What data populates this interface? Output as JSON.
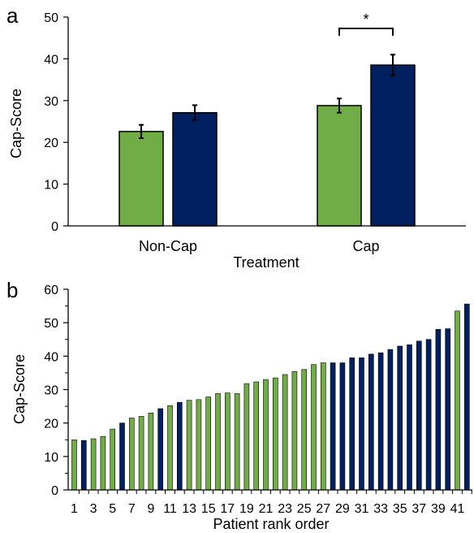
{
  "colors": {
    "green": "#70ad47",
    "navy": "#002060",
    "axis": "#000000"
  },
  "chart_data": [
    {
      "panel_label": "a",
      "type": "bar",
      "xlabel": "Treatment",
      "ylabel": "Cap-Score",
      "categories": [
        "Non-Cap",
        "Cap"
      ],
      "ylim": [
        0,
        50
      ],
      "yticks": [
        0,
        10,
        20,
        30,
        40,
        50
      ],
      "series_colors": [
        "#70ad47",
        "#002060"
      ],
      "series": [
        {
          "values": [
            22.6,
            28.8
          ],
          "errors": [
            1.6,
            1.7
          ]
        },
        {
          "values": [
            27.1,
            38.5
          ],
          "errors": [
            1.8,
            2.5
          ]
        }
      ],
      "significance": {
        "label": "*",
        "category": "Cap"
      }
    },
    {
      "panel_label": "b",
      "type": "bar",
      "xlabel": "Patient rank order",
      "ylabel": "Cap-Score",
      "ylim": [
        0,
        60
      ],
      "yticks": [
        0,
        10,
        20,
        30,
        40,
        50,
        60
      ],
      "categories": [
        "1",
        "2",
        "3",
        "4",
        "5",
        "6",
        "7",
        "8",
        "9",
        "10",
        "11",
        "12",
        "13",
        "14",
        "15",
        "16",
        "17",
        "18",
        "19",
        "20",
        "21",
        "22",
        "23",
        "24",
        "25",
        "26",
        "27",
        "28",
        "29",
        "30",
        "31",
        "32",
        "33",
        "34",
        "35",
        "36",
        "37",
        "38",
        "39",
        "40",
        "41",
        "42"
      ],
      "xtick_labels": [
        "1",
        "3",
        "5",
        "7",
        "9",
        "11",
        "13",
        "15",
        "17",
        "19",
        "21",
        "23",
        "25",
        "27",
        "29",
        "31",
        "33",
        "35",
        "37",
        "39",
        "41"
      ],
      "values": [
        15.0,
        14.8,
        15.3,
        16.0,
        18.2,
        20.0,
        21.5,
        22.0,
        23.0,
        24.3,
        25.2,
        26.2,
        26.8,
        27.0,
        27.8,
        28.8,
        29.0,
        28.8,
        31.8,
        32.3,
        33.0,
        33.5,
        34.5,
        35.4,
        36.0,
        37.5,
        38.0,
        38.0,
        38.0,
        39.5,
        39.5,
        40.6,
        41.0,
        42.0,
        43.0,
        43.4,
        44.5,
        45.0,
        48.0,
        48.2,
        53.5,
        55.6
      ],
      "groups": [
        "green",
        "navy",
        "green",
        "green",
        "green",
        "navy",
        "green",
        "green",
        "green",
        "navy",
        "green",
        "navy",
        "green",
        "green",
        "green",
        "green",
        "green",
        "green",
        "green",
        "green",
        "green",
        "green",
        "green",
        "green",
        "green",
        "green",
        "green",
        "navy",
        "navy",
        "navy",
        "navy",
        "navy",
        "navy",
        "navy",
        "navy",
        "navy",
        "navy",
        "navy",
        "navy",
        "navy",
        "green",
        "navy"
      ]
    }
  ]
}
